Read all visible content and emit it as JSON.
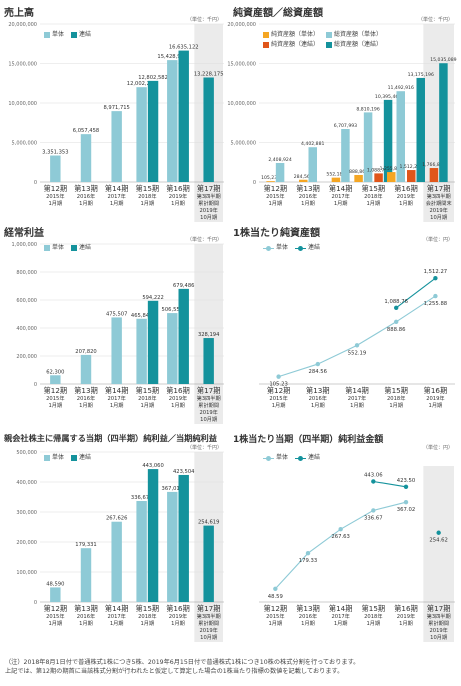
{
  "colors": {
    "single": "#8ecad6",
    "consolidated": "#14929c",
    "net_single": "#f5a623",
    "net_consolidated": "#e0561a",
    "grid": "#dddddd",
    "text": "#333333",
    "shade": "#ebebeb"
  },
  "periods": [
    [
      "第12期",
      "2015年",
      "1月期"
    ],
    [
      "第13期",
      "2016年",
      "1月期"
    ],
    [
      "第14期",
      "2017年",
      "1月期"
    ],
    [
      "第15期",
      "2018年",
      "1月期"
    ],
    [
      "第16期",
      "2019年",
      "1月期"
    ]
  ],
  "footnote": "（注）2018年8月1日付で普通株式1株につき5株、2019年6月15日付で普通株式1株につき10株の株式分割を行っております。\n上記では、第12期の期首に当該株式分割が行われたと仮定して算定した場合の1株当たり指標の数値を記載しております。",
  "chart_data": [
    {
      "id": "sales",
      "type": "bar",
      "title": "売上高",
      "unit": "（単位：千円）",
      "legend": [
        "単体",
        "連結"
      ],
      "legend_placement": "top-left",
      "categories": [
        "第12期",
        "第13期",
        "第14期",
        "第15期",
        "第16期",
        "第17期"
      ],
      "extra_period": [
        "第17期",
        "第3四半期",
        "累計期間",
        "2019年",
        "10月期"
      ],
      "ylim": [
        0,
        20000000
      ],
      "yticks": [
        "0",
        "5,000,000",
        "10,000,000",
        "15,000,000",
        "20,000,000"
      ],
      "series": [
        {
          "name": "単体",
          "values": [
            3351353,
            6057458,
            8971715,
            12002292,
            15428990,
            null
          ]
        },
        {
          "name": "連結",
          "values": [
            null,
            null,
            null,
            12802582,
            16635122,
            13228175
          ]
        }
      ],
      "labels": [
        [
          "3,351,353",
          "6,057,458",
          "8,971,715",
          "12,002,292",
          "15,428,990",
          ""
        ],
        [
          "",
          "",
          "",
          "12,802,582",
          "16,635,122",
          "13,228,175"
        ]
      ]
    },
    {
      "id": "net_assets",
      "type": "bar",
      "title": "純資産額／総資産額",
      "unit": "（単位：千円）",
      "legend": [
        "純資産額（単体）",
        "総資産額（単体）",
        "純資産額（連結）",
        "総資産額（連結）"
      ],
      "legend_placement": "top-left",
      "categories": [
        "第12期",
        "第13期",
        "第14期",
        "第15期",
        "第16期",
        "第17期"
      ],
      "extra_period": [
        "第17期",
        "第3四半期",
        "会計期間末",
        "2019年",
        "10月期"
      ],
      "ylim": [
        0,
        20000000
      ],
      "yticks": [
        "0",
        "5,000,000",
        "10,000,000",
        "15,000,000",
        "20,000,000"
      ],
      "series": [
        {
          "name": "純資産額（単体）",
          "values": [
            105231,
            284563,
            552189,
            888861,
            1255880,
            null
          ]
        },
        {
          "name": "総資産額（単体）",
          "values": [
            2408924,
            4402881,
            6707993,
            8810196,
            11492916,
            null
          ]
        },
        {
          "name": "純資産額（連結）",
          "values": [
            null,
            null,
            null,
            1088763,
            1512268,
            1766837
          ]
        },
        {
          "name": "総資産額（連結）",
          "values": [
            null,
            null,
            null,
            10395460,
            13175196,
            15035089
          ]
        }
      ],
      "labels": [
        [
          "105,231",
          "284,563",
          "552,189",
          "888,861",
          "1,255,880",
          ""
        ],
        [
          "2,408,924",
          "4,402,881",
          "6,707,993",
          "8,810,196",
          "11,492,916",
          ""
        ],
        [
          "",
          "",
          "",
          "1,088,763",
          "1,512,268",
          "1,766,837"
        ],
        [
          "",
          "",
          "",
          "10,395,460",
          "13,175,196",
          "15,035,089"
        ]
      ]
    },
    {
      "id": "ordinary_income",
      "type": "bar",
      "title": "経常利益",
      "unit": "（単位：千円）",
      "legend": [
        "単体",
        "連結"
      ],
      "legend_placement": "top-left",
      "categories": [
        "第12期",
        "第13期",
        "第14期",
        "第15期",
        "第16期",
        "第17期"
      ],
      "extra_period": [
        "第17期",
        "第3四半期",
        "累計期間",
        "2019年",
        "10月期"
      ],
      "ylim": [
        0,
        1000000
      ],
      "yticks": [
        "0",
        "200,000",
        "400,000",
        "600,000",
        "800,000",
        "1,000,000"
      ],
      "series": [
        {
          "name": "単体",
          "values": [
            62300,
            207820,
            475507,
            465840,
            506555,
            null
          ]
        },
        {
          "name": "連結",
          "values": [
            null,
            null,
            null,
            594222,
            679486,
            328194
          ]
        }
      ],
      "labels": [
        [
          "62,300",
          "207,820",
          "475,507",
          "465,840",
          "506,555",
          ""
        ],
        [
          "",
          "",
          "",
          "594,222",
          "679,486",
          "328,194"
        ]
      ]
    },
    {
      "id": "bps",
      "type": "line",
      "title": "1株当たり純資産額",
      "unit": "（単位：円）",
      "legend": [
        "単体",
        "連結"
      ],
      "legend_placement": "top-left",
      "categories": [
        "第12期",
        "第13期",
        "第14期",
        "第15期",
        "第16期"
      ],
      "ylim": [
        0,
        1800
      ],
      "series": [
        {
          "name": "単体",
          "values": [
            105.23,
            284.56,
            552.19,
            888.86,
            1255.88
          ]
        },
        {
          "name": "連結",
          "values": [
            null,
            null,
            null,
            1088.76,
            1512.27
          ]
        }
      ],
      "labels": [
        [
          "105.23",
          "284.56",
          "552.19",
          "888.86",
          "1,255.88"
        ],
        [
          "",
          "",
          "",
          "1,088.76",
          "1,512.27"
        ]
      ]
    },
    {
      "id": "net_income",
      "type": "bar",
      "title": "親会社株主に帰属する当期（四半期）純利益／当期純利益",
      "unit": "（単位：千円）",
      "legend": [
        "単体",
        "連結"
      ],
      "legend_placement": "top-left",
      "categories": [
        "第12期",
        "第13期",
        "第14期",
        "第15期",
        "第16期",
        "第17期"
      ],
      "extra_period": [
        "第17期",
        "第3四半期",
        "累計期間",
        "2019年",
        "10月期"
      ],
      "ylim": [
        0,
        500000
      ],
      "yticks": [
        "0",
        "100,000",
        "200,000",
        "300,000",
        "400,000",
        "500,000"
      ],
      "series": [
        {
          "name": "単体",
          "values": [
            48590,
            179331,
            267626,
            336671,
            367016,
            null
          ]
        },
        {
          "name": "連結",
          "values": [
            null,
            null,
            null,
            443060,
            423504,
            254619
          ]
        }
      ],
      "labels": [
        [
          "48,590",
          "179,331",
          "267,626",
          "336,671",
          "367,016",
          ""
        ],
        [
          "",
          "",
          "",
          "443,060",
          "423,504",
          "254,619"
        ]
      ]
    },
    {
      "id": "eps",
      "type": "line",
      "title": "1株当たり当期（四半期）純利益金額",
      "unit": "（単位：円）",
      "legend": [
        "単体",
        "連結"
      ],
      "legend_placement": "top-left",
      "categories": [
        "第12期",
        "第13期",
        "第14期",
        "第15期",
        "第16期",
        "第17期"
      ],
      "extra_period": [
        "第17期",
        "第3四半期",
        "累計期間",
        "2019年",
        "10月期"
      ],
      "ylim": [
        0,
        500
      ],
      "series": [
        {
          "name": "単体",
          "values": [
            48.59,
            179.33,
            267.63,
            336.67,
            367.02,
            null
          ]
        },
        {
          "name": "連結",
          "values": [
            null,
            null,
            null,
            443.06,
            423.5,
            null
          ]
        },
        {
          "name": "",
          "values": [
            null,
            null,
            null,
            null,
            null,
            254.62
          ]
        }
      ],
      "labels": [
        [
          "48.59",
          "179.33",
          "267.63",
          "336.67",
          "367.02",
          ""
        ],
        [
          "",
          "",
          "",
          "443.06",
          "423.50",
          ""
        ],
        [
          "",
          "",
          "",
          "",
          "",
          "254.62"
        ]
      ]
    }
  ]
}
